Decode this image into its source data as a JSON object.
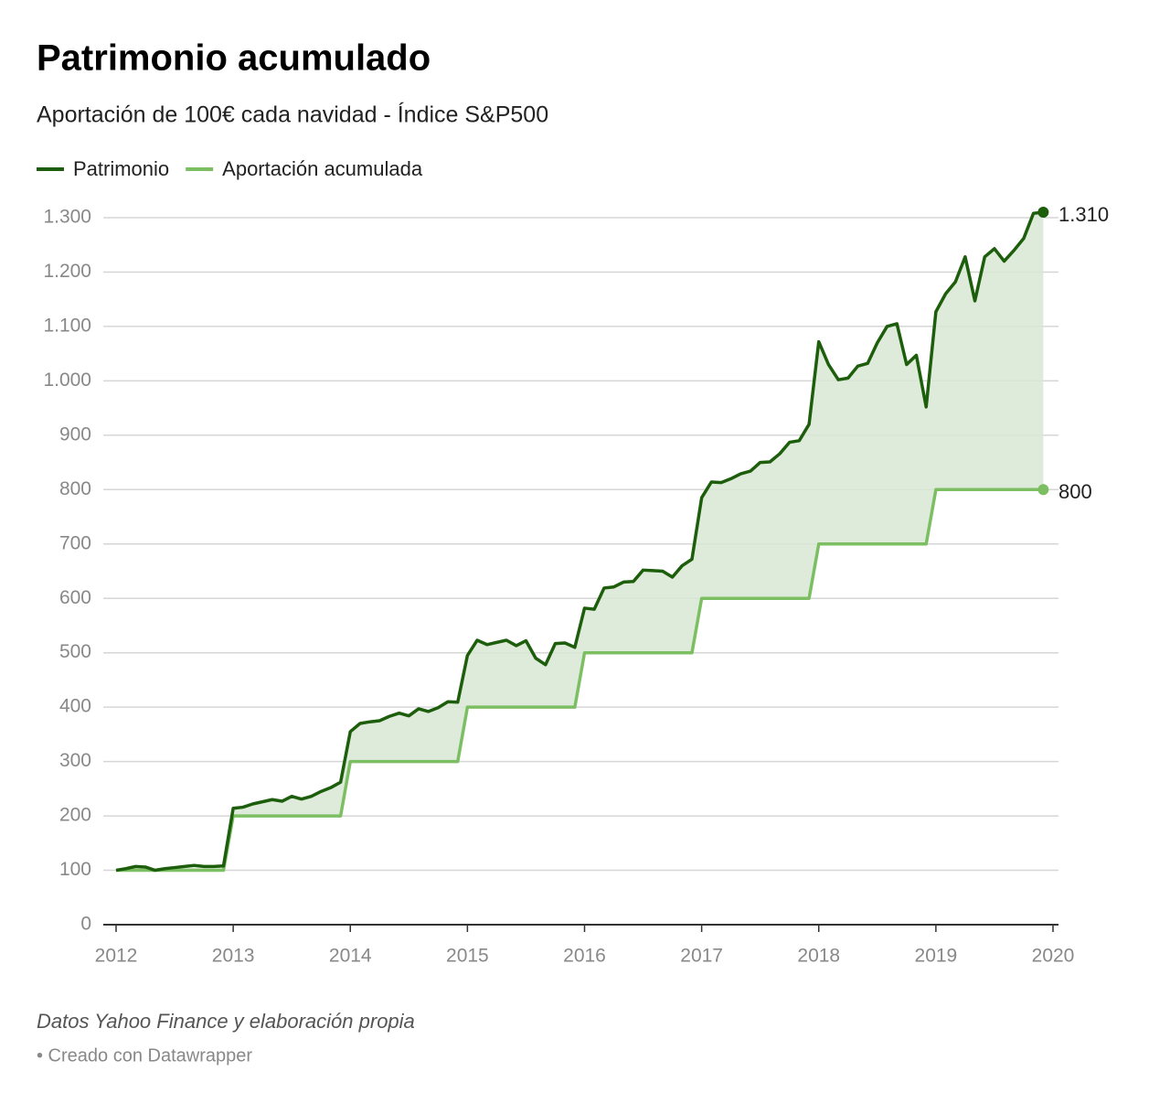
{
  "chart_data": {
    "type": "line",
    "title": "Patrimonio acumulado",
    "subtitle": "Aportación de 100€ cada navidad - Índice S&P500",
    "source": "Datos Yahoo Finance y elaboración propia",
    "credit": "• Creado con Datawrapper",
    "x": [
      2012,
      2012.083,
      2012.167,
      2012.25,
      2012.333,
      2012.417,
      2012.5,
      2012.583,
      2012.667,
      2012.75,
      2012.833,
      2012.917,
      2013,
      2013.083,
      2013.167,
      2013.25,
      2013.333,
      2013.417,
      2013.5,
      2013.583,
      2013.667,
      2013.75,
      2013.833,
      2013.917,
      2014,
      2014.083,
      2014.167,
      2014.25,
      2014.333,
      2014.417,
      2014.5,
      2014.583,
      2014.667,
      2014.75,
      2014.833,
      2014.917,
      2015,
      2015.083,
      2015.167,
      2015.25,
      2015.333,
      2015.417,
      2015.5,
      2015.583,
      2015.667,
      2015.75,
      2015.833,
      2015.917,
      2016,
      2016.083,
      2016.167,
      2016.25,
      2016.333,
      2016.417,
      2016.5,
      2016.583,
      2016.667,
      2016.75,
      2016.833,
      2016.917,
      2017,
      2017.083,
      2017.167,
      2017.25,
      2017.333,
      2017.417,
      2017.5,
      2017.583,
      2017.667,
      2017.75,
      2017.833,
      2017.917,
      2018,
      2018.083,
      2018.167,
      2018.25,
      2018.333,
      2018.417,
      2018.5,
      2018.583,
      2018.667,
      2018.75,
      2018.833,
      2018.917,
      2019,
      2019.083,
      2019.167,
      2019.25,
      2019.333,
      2019.417,
      2019.5,
      2019.583,
      2019.667,
      2019.75,
      2019.833,
      2019.917
    ],
    "series": [
      {
        "name": "Patrimonio",
        "color": "#1d5e0c",
        "values": [
          100,
          103,
          107,
          106,
          100,
          103,
          105,
          107,
          109,
          107,
          107,
          108,
          214,
          216,
          222,
          226,
          230,
          227,
          236,
          231,
          236,
          245,
          252,
          262,
          355,
          370,
          373,
          375,
          383,
          389,
          384,
          397,
          392,
          399,
          410,
          409,
          495,
          523,
          515,
          519,
          523,
          513,
          522,
          490,
          478,
          517,
          518,
          510,
          582,
          580,
          619,
          621,
          630,
          631,
          652,
          651,
          650,
          639,
          660,
          672,
          785,
          814,
          813,
          820,
          829,
          834,
          850,
          851,
          866,
          887,
          890,
          920,
          1072,
          1030,
          1002,
          1005,
          1027,
          1032,
          1070,
          1100,
          1105,
          1030,
          1047,
          952,
          1127,
          1160,
          1182,
          1228,
          1147,
          1228,
          1243,
          1220,
          1240,
          1262,
          1308,
          1310
        ],
        "value_labels": [
          null,
          null,
          null,
          null,
          null,
          null,
          null,
          null,
          null,
          null,
          null,
          null,
          null,
          null,
          null,
          null,
          null,
          null,
          null,
          null,
          null,
          null,
          null,
          null,
          null,
          null,
          null,
          null,
          null,
          null,
          null,
          null,
          null,
          null,
          null,
          null,
          null,
          null,
          null,
          null,
          null,
          null,
          null,
          null,
          null,
          null,
          null,
          null,
          null,
          null,
          null,
          null,
          null,
          null,
          null,
          null,
          null,
          null,
          null,
          null,
          null,
          null,
          null,
          null,
          null,
          null,
          null,
          null,
          null,
          null,
          null,
          null,
          null,
          null,
          null,
          null,
          null,
          null,
          null,
          null,
          null,
          null,
          null,
          null,
          null,
          null,
          null,
          null,
          null,
          null,
          null,
          null,
          null,
          null,
          null,
          "1.310"
        ]
      },
      {
        "name": "Aportación acumulada",
        "color": "#7cbf63",
        "values": [
          100,
          100,
          100,
          100,
          100,
          100,
          100,
          100,
          100,
          100,
          100,
          100,
          200,
          200,
          200,
          200,
          200,
          200,
          200,
          200,
          200,
          200,
          200,
          200,
          300,
          300,
          300,
          300,
          300,
          300,
          300,
          300,
          300,
          300,
          300,
          300,
          400,
          400,
          400,
          400,
          400,
          400,
          400,
          400,
          400,
          400,
          400,
          400,
          500,
          500,
          500,
          500,
          500,
          500,
          500,
          500,
          500,
          500,
          500,
          500,
          600,
          600,
          600,
          600,
          600,
          600,
          600,
          600,
          600,
          600,
          600,
          600,
          700,
          700,
          700,
          700,
          700,
          700,
          700,
          700,
          700,
          700,
          700,
          700,
          800,
          800,
          800,
          800,
          800,
          800,
          800,
          800,
          800,
          800,
          800,
          800
        ]
      }
    ],
    "area_color": "#d9e7d3",
    "xlim": [
      2012,
      2020
    ],
    "xticks": [
      2012,
      2013,
      2014,
      2015,
      2016,
      2017,
      2018,
      2019,
      2020
    ],
    "ylim": [
      0,
      1300
    ],
    "yticks": [
      0,
      100,
      200,
      300,
      400,
      500,
      600,
      700,
      800,
      900,
      {
        "value": 1000,
        "label": "1.000"
      },
      {
        "value": 1100,
        "label": "1.100"
      },
      {
        "value": 1200,
        "label": "1.200"
      },
      {
        "value": 1300,
        "label": "1.300"
      }
    ],
    "grid": true,
    "legend": "top-left"
  }
}
